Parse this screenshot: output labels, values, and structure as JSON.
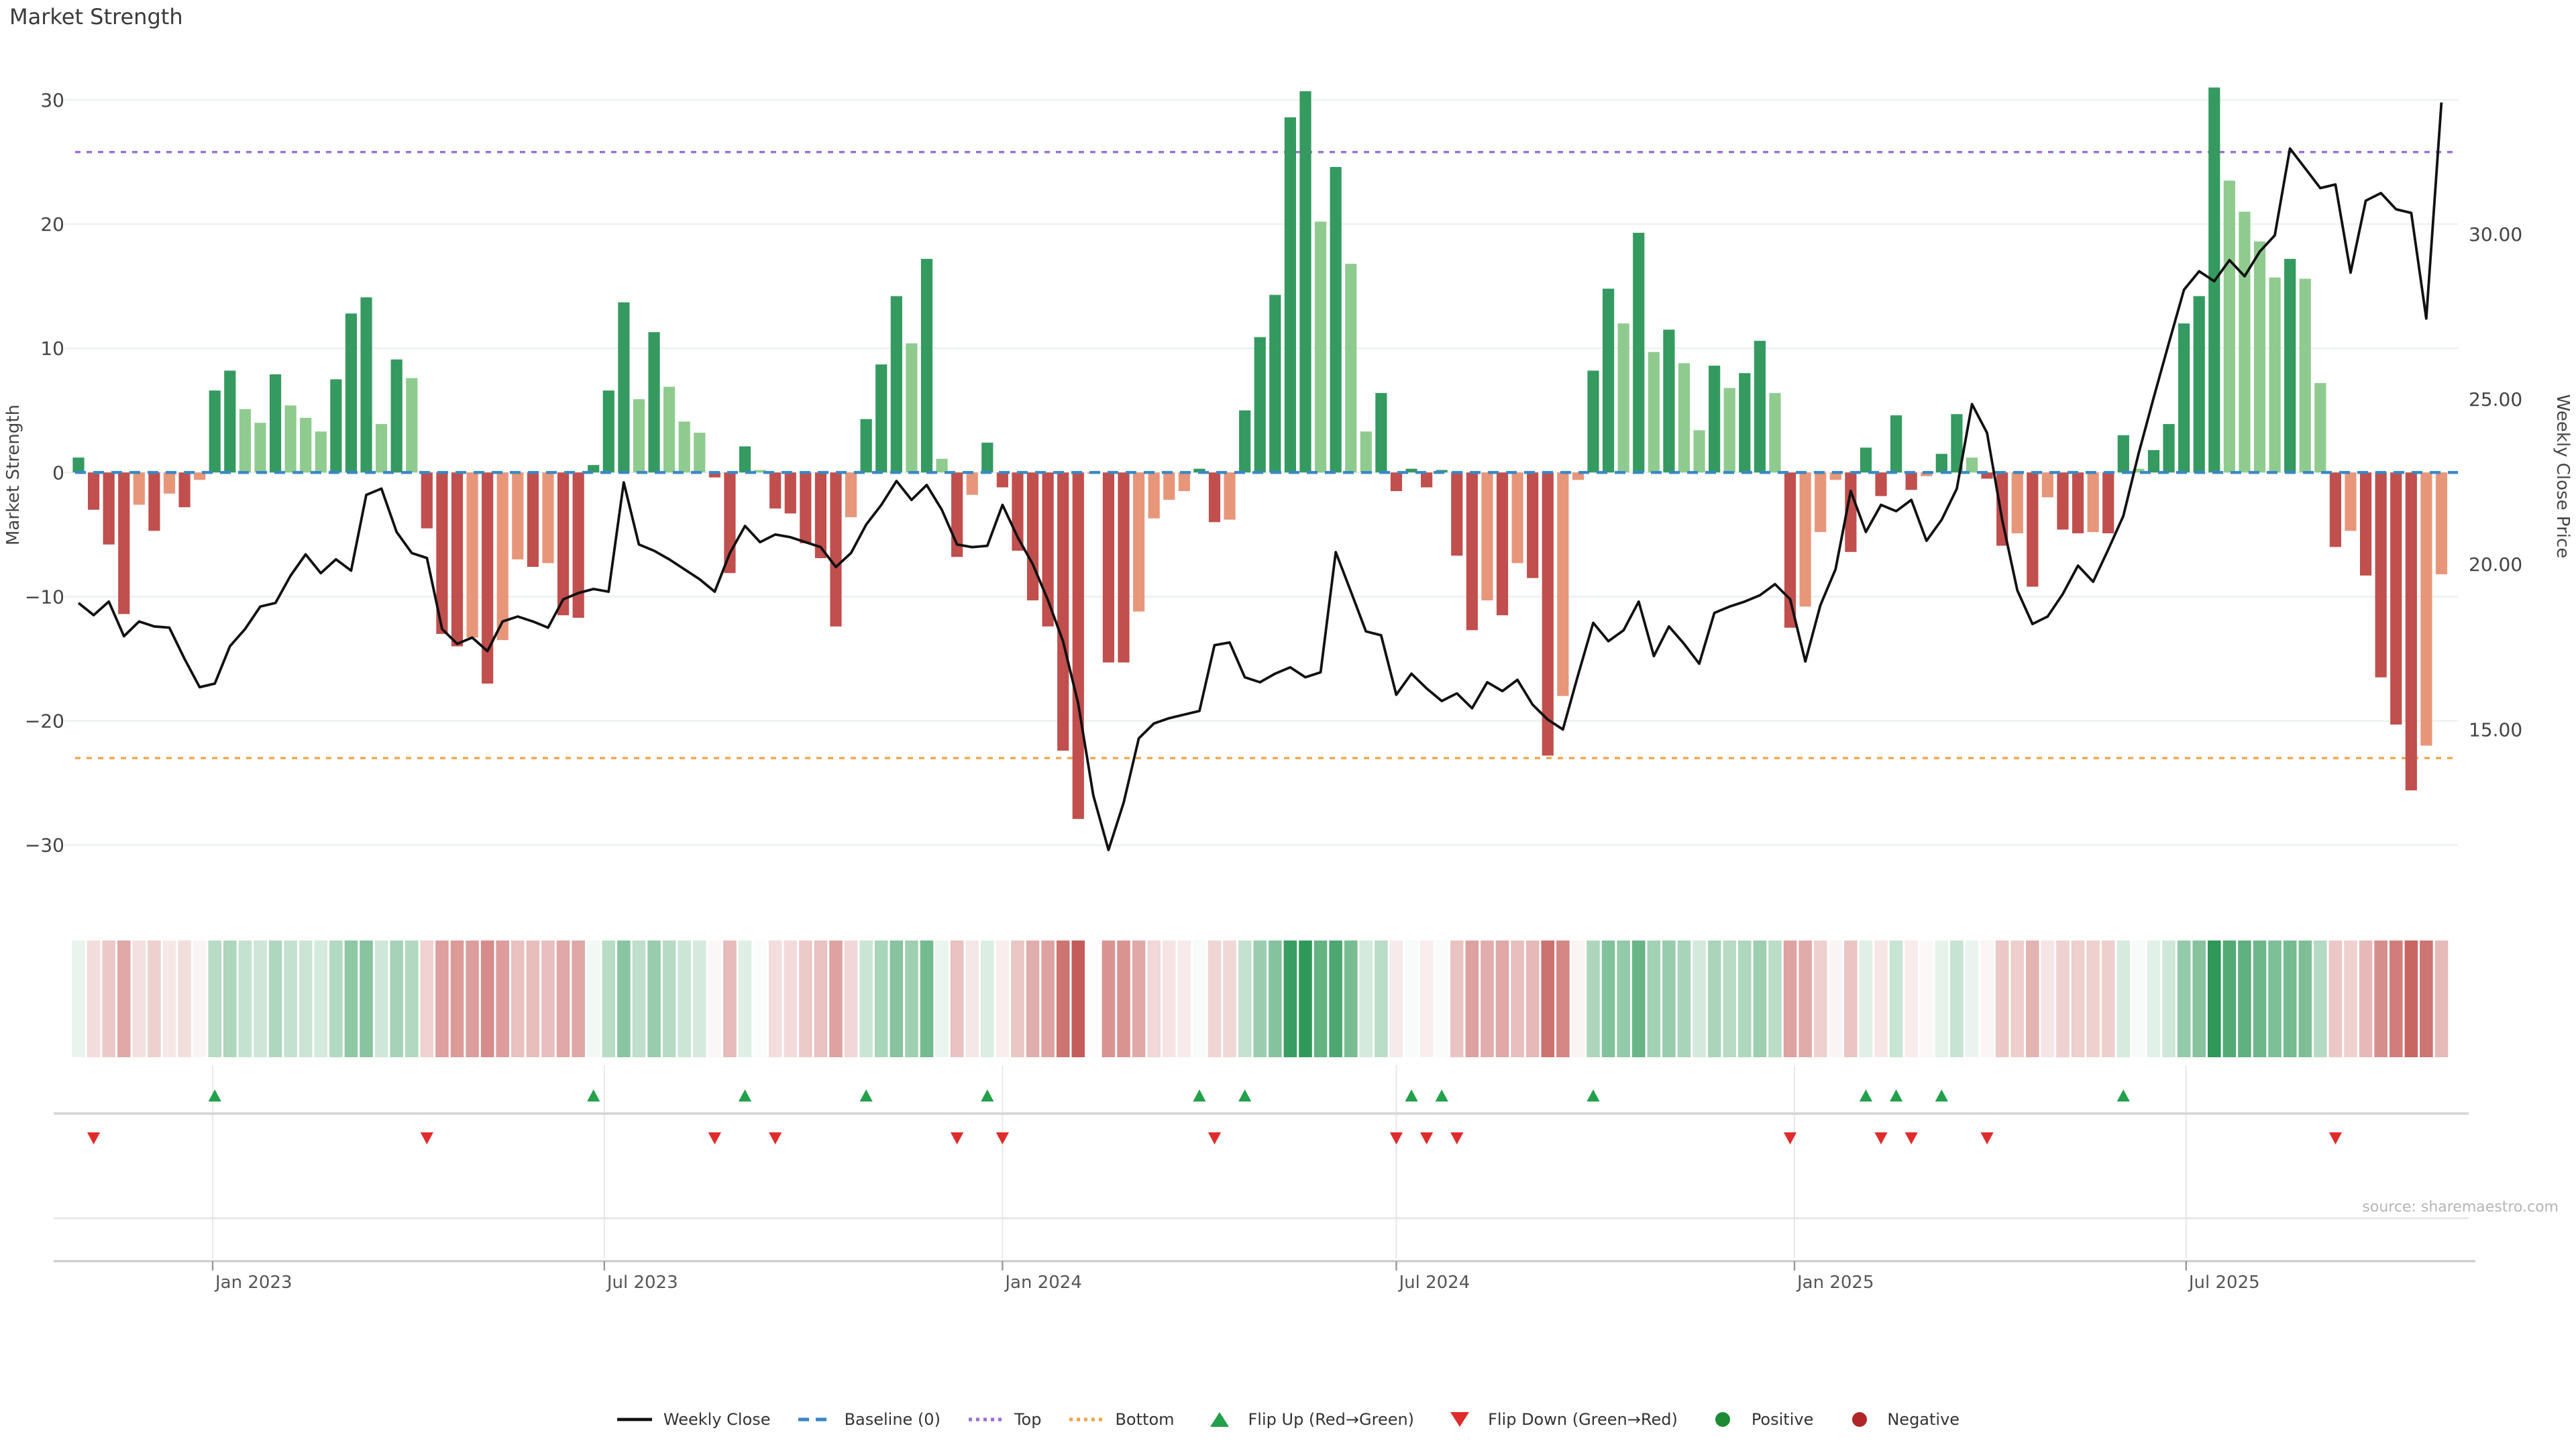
{
  "title": "Market Strength",
  "source": "source: sharemaestro.com",
  "axes": {
    "left_title": "Market Strength",
    "right_title": "Weekly Close Price",
    "left_ticks": [
      30,
      20,
      10,
      0,
      -10,
      -20,
      -30
    ],
    "right_ticks": [
      30,
      25,
      20,
      15
    ],
    "x_ticks": [
      {
        "label": "Jan 2023",
        "week": 8.857
      },
      {
        "label": "Jul 2023",
        "week": 34.714
      },
      {
        "label": "Jan 2024",
        "week": 61.0
      },
      {
        "label": "Jul 2024",
        "week": 87.0
      },
      {
        "label": "Jan 2025",
        "week": 113.286
      },
      {
        "label": "Jul 2025",
        "week": 139.143
      }
    ]
  },
  "legend": [
    {
      "label": "Weekly Close",
      "swatch": "line",
      "color": "#111111"
    },
    {
      "label": "Baseline (0)",
      "swatch": "dashed",
      "color": "#3a87c8"
    },
    {
      "label": "Top",
      "swatch": "dotted",
      "color": "#9b6fd4"
    },
    {
      "label": "Bottom",
      "swatch": "dotted",
      "color": "#efa54b"
    },
    {
      "label": "Flip Up (Red→Green)",
      "swatch": "tri-up",
      "color": "#22a04a"
    },
    {
      "label": "Flip Down (Green→Red)",
      "swatch": "tri-down",
      "color": "#e02b2b"
    },
    {
      "label": "Positive",
      "swatch": "dot",
      "color": "#1d8a34"
    },
    {
      "label": "Negative",
      "swatch": "dot",
      "color": "#b02525"
    }
  ],
  "chart_data": {
    "type": "bar",
    "subtype": "bar+line+heatmap+flip-markers",
    "title": "Market Strength",
    "xlabel": "",
    "ylabel": "Market Strength",
    "y2label": "Weekly Close Price",
    "start_date": "2022-10-31",
    "frequency_days": 7,
    "n_weeks": 157,
    "ylim_left": [
      -33.8,
      33.4
    ],
    "grid": "horizontal",
    "legend_position": "bottom",
    "baseline": 0,
    "top_line": 25.8,
    "bottom_line": -23.0,
    "right_axis_calibration": {
      "price_at_strength0": 22.78,
      "price_per_strength_unit": 0.376
    },
    "series": [
      {
        "name": "Market Strength",
        "axis": "left",
        "values": [
          1.2,
          -3,
          -5.8,
          -11.4,
          -2.6,
          -4.7,
          -1.7,
          -2.8,
          -0.6,
          6.6,
          8.2,
          5.1,
          4,
          7.9,
          5.4,
          4.4,
          3.3,
          7.5,
          12.8,
          14.1,
          3.9,
          9.1,
          7.6,
          -4.5,
          -13,
          -14,
          -13.3,
          -17,
          -13.5,
          -7,
          -7.6,
          -7.3,
          -11.5,
          -11.7,
          0.6,
          6.6,
          13.7,
          5.9,
          11.3,
          6.9,
          4.1,
          3.2,
          -0.4,
          -8.1,
          2.1,
          0.2,
          -2.9,
          -3.3,
          -5.7,
          -6.9,
          -12.4,
          -3.6,
          4.3,
          8.7,
          14.2,
          10.4,
          17.2,
          1.1,
          -6.8,
          -1.8,
          2.4,
          -1.2,
          -6.3,
          -10.3,
          -12.4,
          -22.4,
          -27.9,
          -0.1,
          -15.3,
          -15.3,
          -11.2,
          -3.7,
          -2.2,
          -1.5,
          0.3,
          -4,
          -3.8,
          5,
          10.9,
          14.3,
          28.6,
          30.7,
          20.2,
          24.6,
          16.8,
          3.3,
          6.4,
          -1.5,
          0.3,
          -1.2,
          0.2,
          -6.7,
          -12.7,
          -10.3,
          -11.5,
          -7.3,
          -8.5,
          -22.8,
          -18,
          -0.6,
          8.2,
          14.8,
          12,
          19.3,
          9.7,
          11.5,
          8.8,
          3.4,
          8.6,
          6.8,
          8,
          10.6,
          6.4,
          -12.5,
          -10.8,
          -4.8,
          -0.6,
          -6.4,
          2,
          -1.9,
          4.6,
          -1.4,
          -0.3,
          1.5,
          4.7,
          1.2,
          -0.5,
          -5.9,
          -4.9,
          -9.2,
          -2,
          -4.6,
          -4.9,
          -4.8,
          -4.9,
          3,
          0.3,
          1.8,
          3.9,
          12,
          14.2,
          31,
          23.5,
          21,
          18.6,
          15.7,
          17.2,
          15.6,
          7.2,
          -6,
          -4.7,
          -8.3,
          -16.5,
          -20.3,
          -25.6,
          -22,
          -8.2
        ]
      },
      {
        "name": "Weekly Close",
        "axis": "right",
        "values": [
          18.83,
          18.46,
          18.87,
          17.82,
          18.27,
          18.12,
          18.08,
          17.14,
          16.28,
          16.39,
          17.52,
          18.04,
          18.72,
          18.83,
          19.66,
          20.3,
          19.73,
          20.15,
          19.81,
          22.1,
          22.29,
          20.98,
          20.34,
          20.19,
          18.04,
          17.59,
          17.78,
          17.37,
          18.27,
          18.42,
          18.27,
          18.08,
          18.94,
          19.13,
          19.25,
          19.17,
          22.48,
          20.6,
          20.41,
          20.15,
          19.85,
          19.55,
          19.17,
          20.34,
          21.16,
          20.67,
          20.9,
          20.82,
          20.67,
          20.52,
          19.92,
          20.34,
          21.2,
          21.8,
          22.52,
          21.95,
          22.4,
          21.65,
          20.6,
          20.52,
          20.56,
          21.8,
          20.82,
          20.0,
          18.91,
          17.67,
          15.79,
          13.0,
          11.35,
          12.78,
          14.73,
          15.18,
          15.34,
          15.45,
          15.56,
          17.55,
          17.63,
          16.58,
          16.43,
          16.69,
          16.88,
          16.58,
          16.73,
          20.37,
          19.17,
          17.97,
          17.85,
          16.05,
          16.69,
          16.24,
          15.86,
          16.09,
          15.64,
          16.43,
          16.16,
          16.5,
          15.75,
          15.3,
          15.0,
          16.65,
          18.23,
          17.67,
          18.0,
          18.87,
          17.22,
          18.12,
          17.59,
          16.99,
          18.53,
          18.72,
          18.87,
          19.06,
          19.4,
          18.94,
          17.06,
          18.76,
          19.85,
          22.22,
          20.98,
          21.8,
          21.61,
          21.95,
          20.71,
          21.35,
          22.29,
          24.85,
          23.98,
          21.35,
          19.21,
          18.19,
          18.42,
          19.1,
          19.96,
          19.47,
          20.45,
          21.46,
          23.34,
          25.04,
          26.69,
          28.31,
          28.87,
          28.57,
          29.21,
          28.72,
          29.47,
          29.96,
          32.59,
          31.99,
          31.39,
          31.5,
          28.83,
          31.01,
          31.24,
          30.75,
          30.64,
          27.44,
          33.98
        ]
      }
    ],
    "bar_color_rule": "positive: dark green if >= previous else light green; negative: dark red if <= previous else salmon",
    "flip_marker_rule": "flip-up triangle where bar sign turns non-negative; flip-down triangle where bar sign turns negative",
    "colors": {
      "bar_pos_dark": "#349a60",
      "bar_pos_light": "#8fcb8f",
      "bar_neg_dark": "#c14f4d",
      "bar_neg_light": "#e8967a",
      "line": "#111111",
      "baseline": "#3a87c8",
      "top": "#9b6fd4",
      "bottom": "#efa54b",
      "gridline": "#edf1f1",
      "heat_pos": "#2e9858",
      "heat_neg": "#c0504d",
      "flip_up": "#22a04a",
      "flip_down": "#e02b2b"
    }
  }
}
